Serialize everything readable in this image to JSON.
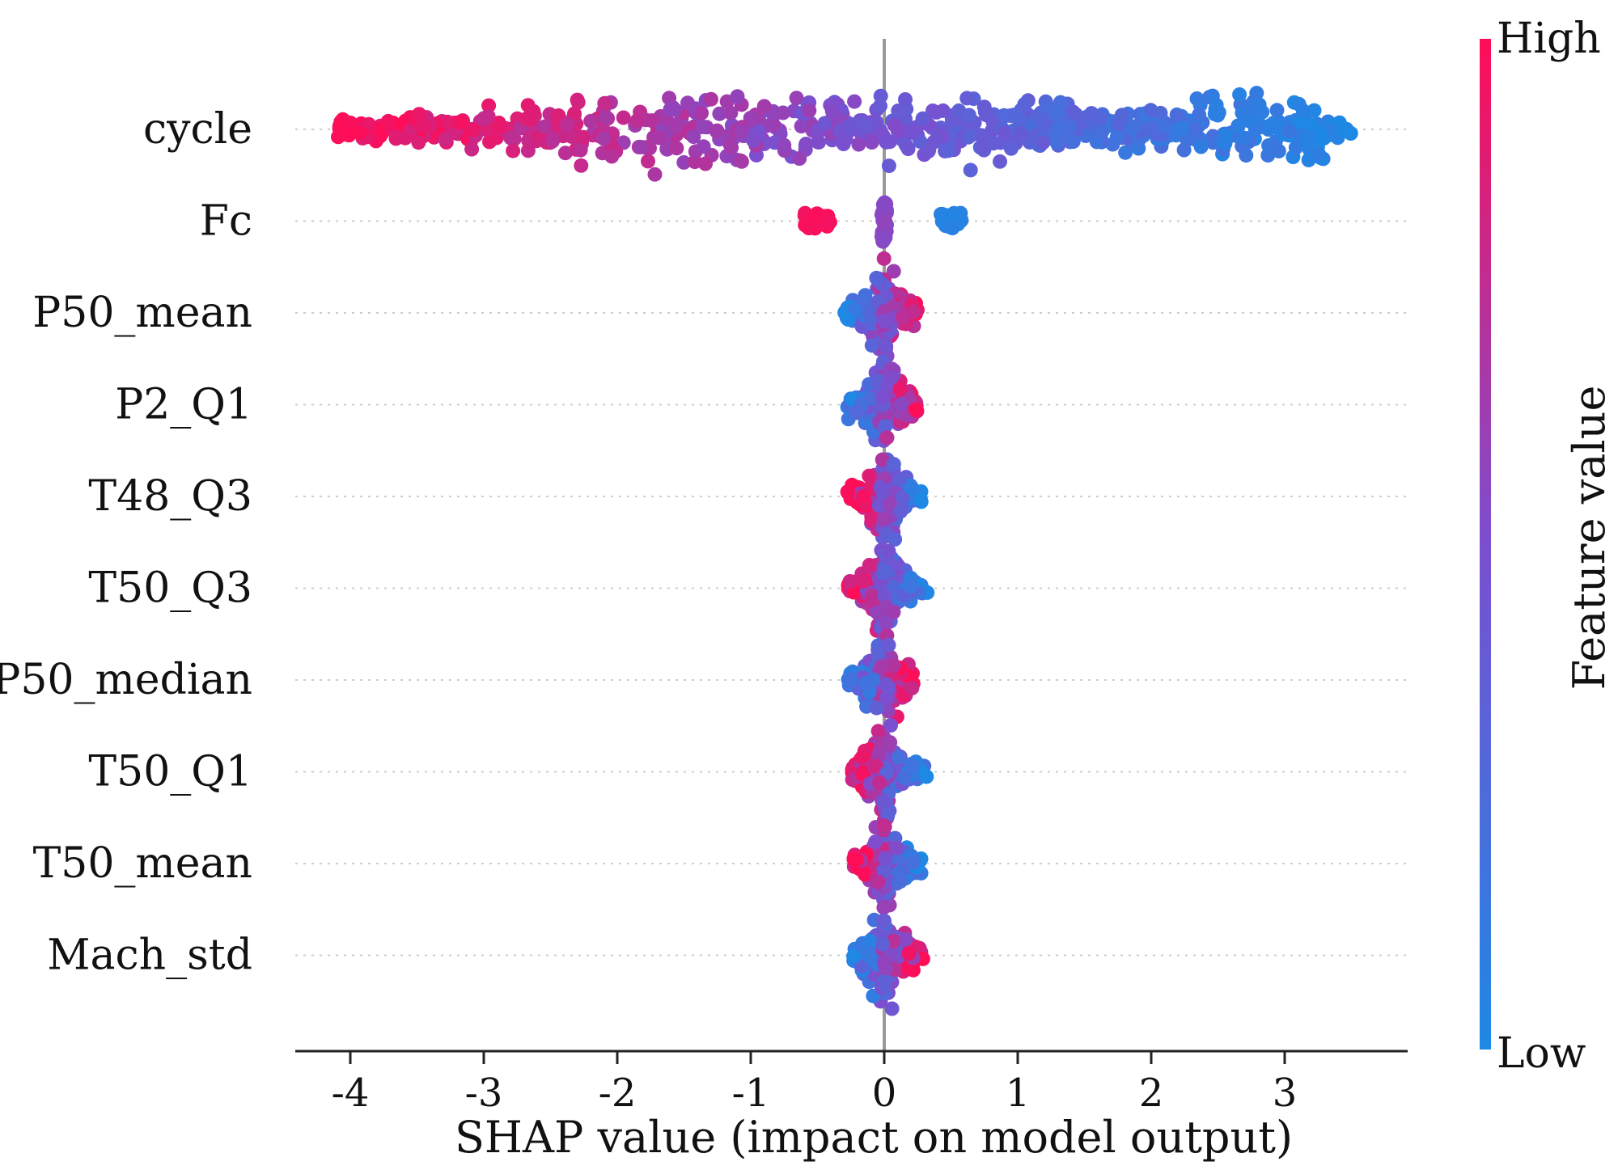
{
  "chart_data": {
    "type": "scatter",
    "subtype": "shap-beeswarm",
    "xlabel": "SHAP value (impact on model output)",
    "xlim": [
      -4.45,
      3.95
    ],
    "xticks": [
      -4,
      -3,
      -2,
      -1,
      0,
      1,
      2,
      3
    ],
    "xtick_labels": [
      "-4",
      "-3",
      "-2",
      "-1",
      "0",
      "1",
      "2",
      "3"
    ],
    "features": [
      "cycle",
      "Fc",
      "P50_mean",
      "P2_Q1",
      "T48_Q3",
      "T50_Q3",
      "P50_median",
      "T50_Q1",
      "T50_mean",
      "Mach_std"
    ],
    "series": [
      {
        "name": "cycle",
        "shap_range": [
          -4.1,
          3.5
        ],
        "spread": 1.05,
        "count": 420,
        "value_trend": "high values at negative SHAP, low values at positive SHAP"
      },
      {
        "name": "Fc",
        "clusters": [
          {
            "center": -0.5,
            "halfwidth": 0.1,
            "feature_value": "high"
          },
          {
            "center": 0.0,
            "halfwidth": 0.02,
            "feature_value": "mid"
          },
          {
            "center": 0.5,
            "halfwidth": 0.08,
            "feature_value": "low"
          }
        ]
      },
      {
        "name": "P50_mean",
        "shap_range": [
          -0.3,
          0.25
        ],
        "value_trend": "positive correlation"
      },
      {
        "name": "P2_Q1",
        "shap_range": [
          -0.28,
          0.25
        ],
        "value_trend": "positive correlation"
      },
      {
        "name": "T48_Q3",
        "shap_range": [
          -0.28,
          0.28
        ],
        "value_trend": "negative correlation"
      },
      {
        "name": "T50_Q3",
        "shap_range": [
          -0.28,
          0.33
        ],
        "value_trend": "negative correlation"
      },
      {
        "name": "P50_median",
        "shap_range": [
          -0.27,
          0.22
        ],
        "value_trend": "positive correlation"
      },
      {
        "name": "T50_Q1",
        "shap_range": [
          -0.25,
          0.32
        ],
        "value_trend": "negative correlation"
      },
      {
        "name": "T50_mean",
        "shap_range": [
          -0.23,
          0.28
        ],
        "value_trend": "negative correlation"
      },
      {
        "name": "Mach_std",
        "shap_range": [
          -0.23,
          0.3
        ],
        "value_trend": "positive correlation"
      }
    ],
    "colorbar": {
      "title": "Feature value",
      "high_label": "High",
      "low_label": "Low",
      "low_color": "#1E88E5",
      "high_color": "#FF0D57"
    },
    "zero_line": 0,
    "grid": "dotted horizontal per feature"
  }
}
